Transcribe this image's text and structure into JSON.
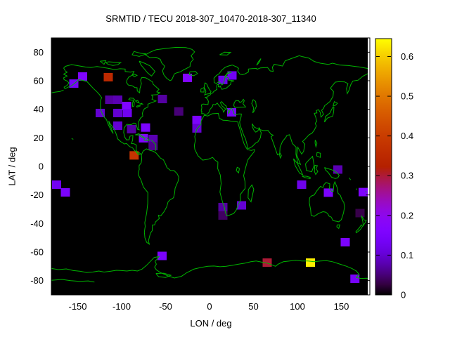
{
  "title": "SRMTID / TECU 2018-307_10470-2018-307_11340",
  "colors": {
    "page_background": "#ffffff",
    "map_background": "#000000",
    "coastline": "#00b400",
    "border": "#000000",
    "text": "#000000",
    "palette_low": "#000000",
    "palette_mid": "#b42800",
    "palette_high": "#ffff00"
  },
  "axes": {
    "x": {
      "label": "LON / deg",
      "ticks": [
        -150,
        -100,
        -50,
        0,
        50,
        100,
        150
      ],
      "range": [
        -180,
        183
      ]
    },
    "y": {
      "label": "LAT / deg",
      "ticks": [
        80,
        60,
        40,
        20,
        0,
        -20,
        -40,
        -60,
        -80
      ],
      "range": [
        -90,
        90
      ]
    }
  },
  "colorbar": {
    "tick_labels": [
      "0",
      "0.1",
      "0.2",
      "0.3",
      "0.4",
      "0.5",
      "0.6"
    ],
    "tick_values": [
      0,
      0.1,
      0.2,
      0.3,
      0.4,
      0.5,
      0.6
    ],
    "range": [
      0,
      0.645
    ],
    "palette": "gnuplot rgbformulae 7,5,15 (black-purple-red-orange-yellow)"
  },
  "chart_data": {
    "type": "heatmap",
    "title": "SRMTID / TECU 2018-307_10470-2018-307_11340",
    "xlabel": "LON / deg",
    "ylabel": "LAT / deg",
    "xlim": [
      -180,
      183
    ],
    "ylim": [
      -90,
      90
    ],
    "cbar_lim": [
      0,
      0.645
    ],
    "grid": false,
    "legend_position": "right-colorbar",
    "basemap": "world-coastlines-green-on-black",
    "cell_size_deg": {
      "lon": 10,
      "lat": 6
    },
    "points": [
      {
        "lon": -144.4,
        "lat": 63.0,
        "value": 0.16
      },
      {
        "lon": -154.4,
        "lat": 58.0,
        "value": 0.14
      },
      {
        "lon": -115.2,
        "lat": 62.5,
        "value": 0.35
      },
      {
        "lon": -113.6,
        "lat": 46.7,
        "value": 0.07
      },
      {
        "lon": -104.4,
        "lat": 46.7,
        "value": 0.08
      },
      {
        "lon": -53.6,
        "lat": 47.2,
        "value": 0.07
      },
      {
        "lon": -94.4,
        "lat": 42.3,
        "value": 0.16
      },
      {
        "lon": -124.4,
        "lat": 37.4,
        "value": 0.1
      },
      {
        "lon": -104.4,
        "lat": 37.4,
        "value": 0.1
      },
      {
        "lon": -93.6,
        "lat": 37.4,
        "value": 0.13
      },
      {
        "lon": -25.2,
        "lat": 62.0,
        "value": 0.17
      },
      {
        "lon": -35.0,
        "lat": 38.5,
        "value": 0.05
      },
      {
        "lon": -14.4,
        "lat": 32.5,
        "value": 0.15
      },
      {
        "lon": -14.4,
        "lat": 26.6,
        "value": 0.1
      },
      {
        "lon": -104.4,
        "lat": 28.5,
        "value": 0.1
      },
      {
        "lon": -88.8,
        "lat": 26.1,
        "value": 0.07
      },
      {
        "lon": -72.8,
        "lat": 27.2,
        "value": 0.15
      },
      {
        "lon": -75.2,
        "lat": 19.7,
        "value": 0.16
      },
      {
        "lon": -64.2,
        "lat": 19.2,
        "value": 0.08
      },
      {
        "lon": -64.2,
        "lat": 14.3,
        "value": 0.06
      },
      {
        "lon": -85.8,
        "lat": 7.7,
        "value": 0.38
      },
      {
        "lon": -174.0,
        "lat": -12.8,
        "value": 0.13
      },
      {
        "lon": -164.0,
        "lat": -18.2,
        "value": 0.15
      },
      {
        "lon": -54.0,
        "lat": -62.7,
        "value": 0.15
      },
      {
        "lon": 25.6,
        "lat": 63.7,
        "value": 0.13
      },
      {
        "lon": 15.2,
        "lat": 60.6,
        "value": 0.12
      },
      {
        "lon": 25.2,
        "lat": 37.9,
        "value": 0.15
      },
      {
        "lon": 15.2,
        "lat": -28.5,
        "value": 0.07
      },
      {
        "lon": 36.4,
        "lat": -27.3,
        "value": 0.1
      },
      {
        "lon": 15.2,
        "lat": -34.4,
        "value": 0.04
      },
      {
        "lon": 146.0,
        "lat": -2.2,
        "value": 0.08
      },
      {
        "lon": 104.8,
        "lat": -12.8,
        "value": 0.12
      },
      {
        "lon": 135.2,
        "lat": -18.4,
        "value": 0.15
      },
      {
        "lon": 174.8,
        "lat": -18.0,
        "value": 0.16
      },
      {
        "lon": 171.2,
        "lat": -32.7,
        "value": 0.03
      },
      {
        "lon": 154.4,
        "lat": -53.1,
        "value": 0.15
      },
      {
        "lon": 65.6,
        "lat": -67.4,
        "value": 0.3
      },
      {
        "lon": 114.8,
        "lat": -67.4,
        "value": 0.63
      },
      {
        "lon": 165.4,
        "lat": -78.7,
        "value": 0.14
      }
    ]
  }
}
